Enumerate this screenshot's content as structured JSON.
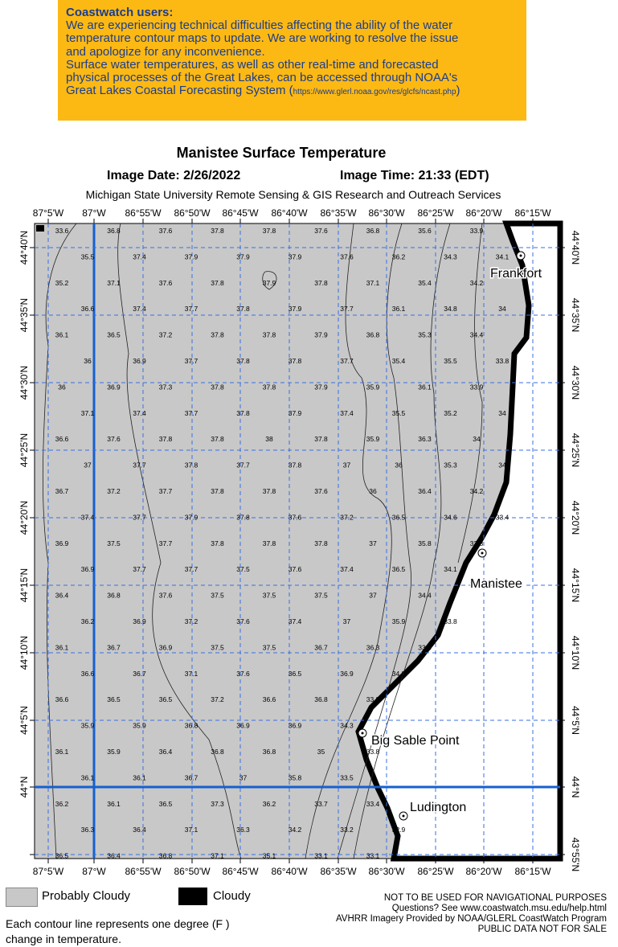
{
  "notice": {
    "heading": "Coastwatch users:",
    "lines": [
      "We are experiencing technical difficulties affecting the ability of the water",
      "temperature contour maps to update. We are working to resolve the issue",
      "and apologize for any inconvenience.",
      "Surface water temperatures, as well as other real-time and forecasted",
      "physical processes of the Great Lakes, can be accessed through NOAA's"
    ],
    "last_line_before": "Great Lakes Coastal Forecasting System (",
    "link": "https://www.glerl.noaa.gov/res/glcfs/ncast.php",
    "last_line_after": ")"
  },
  "title": "Manistee Surface Temperature",
  "image_date": "Image Date: 2/26/2022",
  "image_time": "Image Time: 21:33 (EDT)",
  "credit": "Michigan State University Remote Sensing & GIS Research and Outreach Services",
  "map": {
    "lon_labels": [
      "87°5'W",
      "87°W",
      "86°55'W",
      "86°50'W",
      "86°45'W",
      "86°40'W",
      "86°35'W",
      "86°30'W",
      "86°25'W",
      "86°20'W",
      "86°15'W"
    ],
    "lat_labels": [
      "44°40'N",
      "44°35'N",
      "44°30'N",
      "44°25'N",
      "44°20'N",
      "44°15'N",
      "44°10'N",
      "44°5'N",
      "44°N",
      "43°55'N"
    ],
    "temperatures": [
      [
        "33.6",
        "36.8",
        "37.6",
        "37.8",
        "37.8",
        "37.6",
        "36.8",
        "35.6",
        "33.9"
      ],
      [
        "35.5",
        "37.4",
        "37.9",
        "37.9",
        "37.9",
        "37.6",
        "36.2",
        "34.3",
        "34.1"
      ],
      [
        "35.2",
        "37.1",
        "37.6",
        "37.8",
        "37.9",
        "37.8",
        "37.1",
        "35.4",
        "34.2"
      ],
      [
        "36.6",
        "37.4",
        "37.7",
        "37.8",
        "37.9",
        "37.7",
        "36.1",
        "34.8",
        "34"
      ],
      [
        "36.1",
        "36.5",
        "37.2",
        "37.8",
        "37.8",
        "37.9",
        "36.8",
        "35.3",
        "34.4"
      ],
      [
        "36",
        "36.9",
        "37.7",
        "37.8",
        "37.8",
        "37.7",
        "35.4",
        "35.5",
        "33.8"
      ],
      [
        "36",
        "36.9",
        "37.3",
        "37.8",
        "37.8",
        "37.9",
        "35.9",
        "36.1",
        "33.9"
      ],
      [
        "37.1",
        "37.4",
        "37.7",
        "37.8",
        "37.9",
        "37.4",
        "35.5",
        "35.2",
        "34"
      ],
      [
        "36.6",
        "37.6",
        "37.8",
        "37.8",
        "38",
        "37.8",
        "35.9",
        "36.3",
        "34"
      ],
      [
        "37",
        "37.7",
        "37.8",
        "37.7",
        "37.8",
        "37",
        "36",
        "35.3",
        "34"
      ],
      [
        "36.7",
        "37.2",
        "37.7",
        "37.8",
        "37.8",
        "37.6",
        "36",
        "36.4",
        "34.2"
      ],
      [
        "37.4",
        "37.7",
        "37.9",
        "37.8",
        "37.6",
        "37.2",
        "36.5",
        "34.6",
        "33.4"
      ],
      [
        "36.9",
        "37.5",
        "37.7",
        "37.8",
        "37.8",
        "37.8",
        "37",
        "35.8",
        "33.8"
      ],
      [
        "36.9",
        "37.7",
        "37.7",
        "37.5",
        "37.6",
        "37.4",
        "36.5",
        "34.1"
      ],
      [
        "36.4",
        "36.8",
        "37.6",
        "37.5",
        "37.5",
        "37.5",
        "37",
        "34.4"
      ],
      [
        "36.2",
        "36.9",
        "37.2",
        "37.6",
        "37.4",
        "37",
        "35.9",
        "33.8"
      ],
      [
        "36.1",
        "36.7",
        "36.9",
        "37.5",
        "37.5",
        "36.7",
        "36.3",
        "33.8"
      ],
      [
        "36.6",
        "36.7",
        "37.1",
        "37.6",
        "36.5",
        "36.9",
        "34.3"
      ],
      [
        "36.6",
        "36.5",
        "36.5",
        "37.2",
        "36.6",
        "36.8",
        "33.8"
      ],
      [
        "35.9",
        "35.9",
        "36.8",
        "36.9",
        "36.9",
        "34.3"
      ],
      [
        "36.1",
        "35.9",
        "36.4",
        "36.8",
        "36.8",
        "35",
        "33.8"
      ],
      [
        "36.1",
        "36.1",
        "36.7",
        "37",
        "35.8",
        "33.5"
      ],
      [
        "36.2",
        "36.1",
        "36.5",
        "37.3",
        "36.2",
        "33.7",
        "33.4"
      ],
      [
        "36.3",
        "36.4",
        "37.1",
        "36.3",
        "34.2",
        "33.2",
        "32.9"
      ],
      [
        "36.5",
        "36.4",
        "36.8",
        "37.1",
        "35.1",
        "33.1",
        "33.1"
      ]
    ],
    "places": [
      "Frankfort",
      "Manistee",
      "Big Sable Point",
      "Ludington"
    ]
  },
  "legend": [
    "Probably Cloudy",
    "Cloudy"
  ],
  "footnote": [
    "Each contour line represents one degree (F )",
    "change in temperature."
  ],
  "disclaimer": [
    "NOT TO BE USED FOR NAVIGATIONAL PURPOSES",
    "Questions?  See www.coastwatch.msu.edu/help.html",
    "AVHRR Imagery Provided by NOAA/GLERL CoastWatch Program",
    "PUBLIC DATA NOT FOR SALE"
  ]
}
